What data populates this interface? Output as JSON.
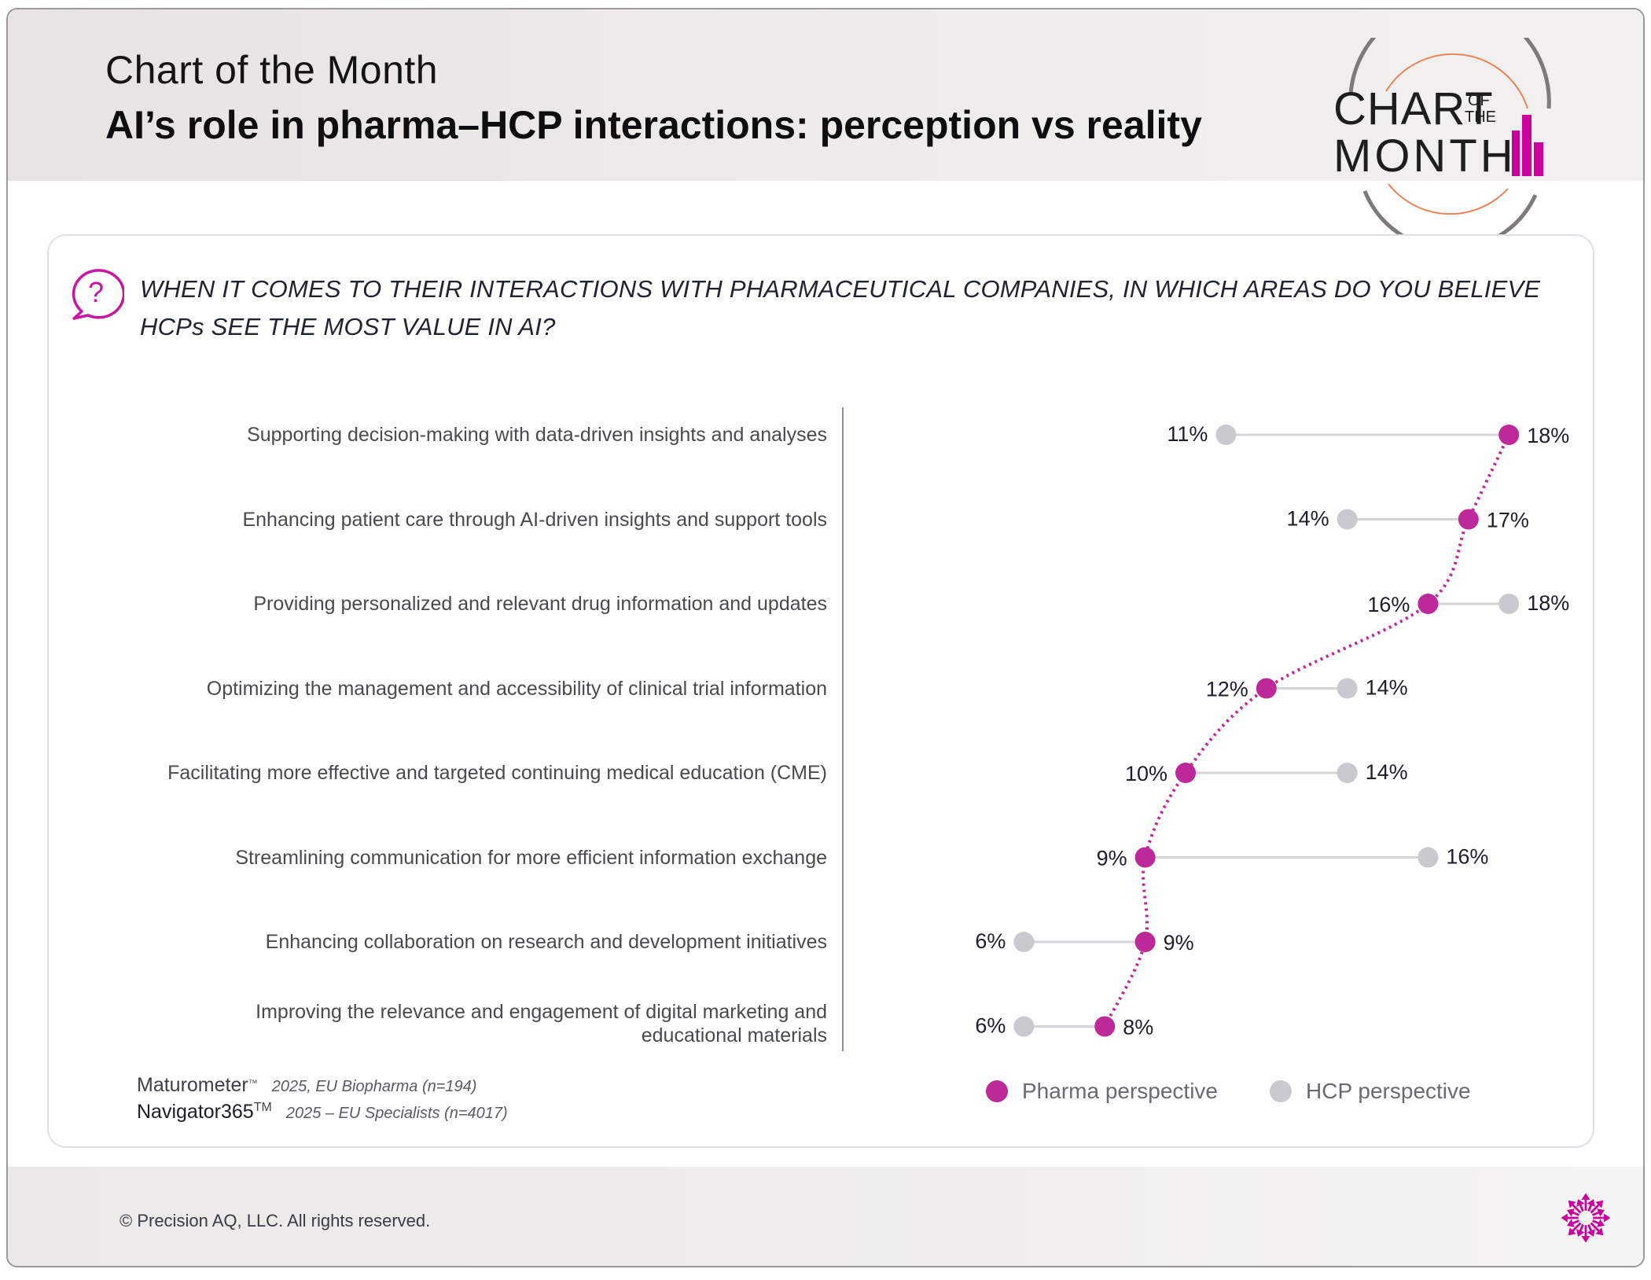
{
  "header": {
    "kicker": "Chart of the Month",
    "title": "AI’s role in pharma–HCP interactions: perception vs reality",
    "logo": {
      "line1": "CHART",
      "of": "OF",
      "the": "THE",
      "line2": "MONTH",
      "accent_color": "#c8009c",
      "ring_color": "#7d7a78",
      "inner_ring_color": "#e8845a"
    }
  },
  "question": {
    "icon": "question-bubble-icon",
    "text_line1": "WHEN IT COMES TO THEIR INTERACTIONS WITH PHARMACEUTICAL COMPANIES, IN WHICH AREAS DO YOU BELIEVE",
    "text_line2": "HCPs SEE THE MOST VALUE IN AI?"
  },
  "chart_data": {
    "type": "scatter",
    "subtype": "dumbbell",
    "title": "WHEN IT COMES TO THEIR INTERACTIONS WITH PHARMACEUTICAL COMPANIES, IN WHICH AREAS DO YOU BELIEVE HCPs SEE THE MOST VALUE IN AI?",
    "xlabel": "",
    "ylabel": "",
    "unit": "%",
    "xlim": [
      0,
      19
    ],
    "grid": false,
    "legend_position": "bottom-right",
    "categories": [
      "Supporting decision-making with data-driven insights and analyses",
      "Enhancing patient care through AI-driven insights and support tools",
      "Providing personalized and relevant drug information and updates",
      "Optimizing the management and accessibility of clinical trial information",
      "Facilitating more effective and targeted continuing medical education (CME)",
      "Streamlining communication for more efficient information exchange",
      "Enhancing collaboration on research and development initiatives",
      "Improving the relevance and engagement of digital marketing and educational materials"
    ],
    "category_lines": [
      [
        "Supporting decision-making with data-driven insights and analyses"
      ],
      [
        "Enhancing patient care through AI-driven insights and support tools"
      ],
      [
        "Providing personalized and relevant drug information and updates"
      ],
      [
        "Optimizing the management and accessibility of clinical trial information"
      ],
      [
        "Facilitating more effective and targeted continuing medical education (CME)"
      ],
      [
        "Streamlining communication for more efficient information exchange"
      ],
      [
        "Enhancing collaboration on research and development initiatives"
      ],
      [
        "Improving the relevance and engagement of digital marketing and",
        "educational materials"
      ]
    ],
    "series": [
      {
        "name": "Pharma perspective",
        "color": "#bb2a98",
        "connector": "dotted",
        "values": [
          18,
          17,
          16,
          12,
          10,
          9,
          9,
          8
        ]
      },
      {
        "name": "HCP perspective",
        "color": "#c9cacf",
        "values": [
          11,
          14,
          18,
          14,
          14,
          16,
          6,
          6
        ]
      }
    ],
    "value_labels": {
      "pharma": [
        "18%",
        "17%",
        "16%",
        "12%",
        "10%",
        "9%",
        "9%",
        "8%"
      ],
      "hcp": [
        "11%",
        "14%",
        "18%",
        "14%",
        "14%",
        "16%",
        "6%",
        "6%"
      ]
    },
    "connector_color": "#d3d4d8",
    "label_color": "#1b1f2a"
  },
  "legend": [
    {
      "label": "Pharma perspective",
      "color": "#bb2a98"
    },
    {
      "label": "HCP perspective",
      "color": "#c9cacf"
    }
  ],
  "sources": [
    {
      "brand": "Maturometer",
      "mark": "™",
      "detail": "2025, EU Biopharma (n=194)"
    },
    {
      "brand": "Navigator365",
      "mark": "TM",
      "detail": "2025 – EU Specialists (n=4017)"
    }
  ],
  "footer": {
    "copyright": "© Precision AQ, LLC. All rights reserved.",
    "logo_icon": "burst-arrows-icon",
    "logo_color": "#c8009c"
  }
}
